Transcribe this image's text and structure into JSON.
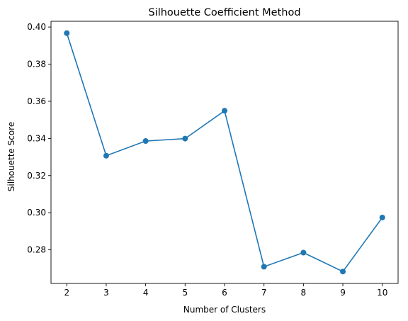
{
  "chart_data": {
    "type": "line",
    "title": "Silhouette Coefficient Method",
    "xlabel": "Number of Clusters",
    "ylabel": "Silhouette Score",
    "x": [
      2,
      3,
      4,
      5,
      6,
      7,
      8,
      9,
      10
    ],
    "series": [
      {
        "values": [
          0.3967,
          0.3307,
          0.3386,
          0.3399,
          0.3549,
          0.2709,
          0.2785,
          0.2683,
          0.2974
        ],
        "color": "#1f77b4",
        "marker": "circle"
      }
    ],
    "xticks": [
      "2",
      "3",
      "4",
      "5",
      "6",
      "7",
      "8",
      "9",
      "10"
    ],
    "yticks": [
      "0.28",
      "0.30",
      "0.32",
      "0.34",
      "0.36",
      "0.38",
      "0.40"
    ],
    "xlim": [
      1.6,
      10.4
    ],
    "ylim": [
      0.2619,
      0.4031
    ],
    "grid": false,
    "legend": "none"
  }
}
